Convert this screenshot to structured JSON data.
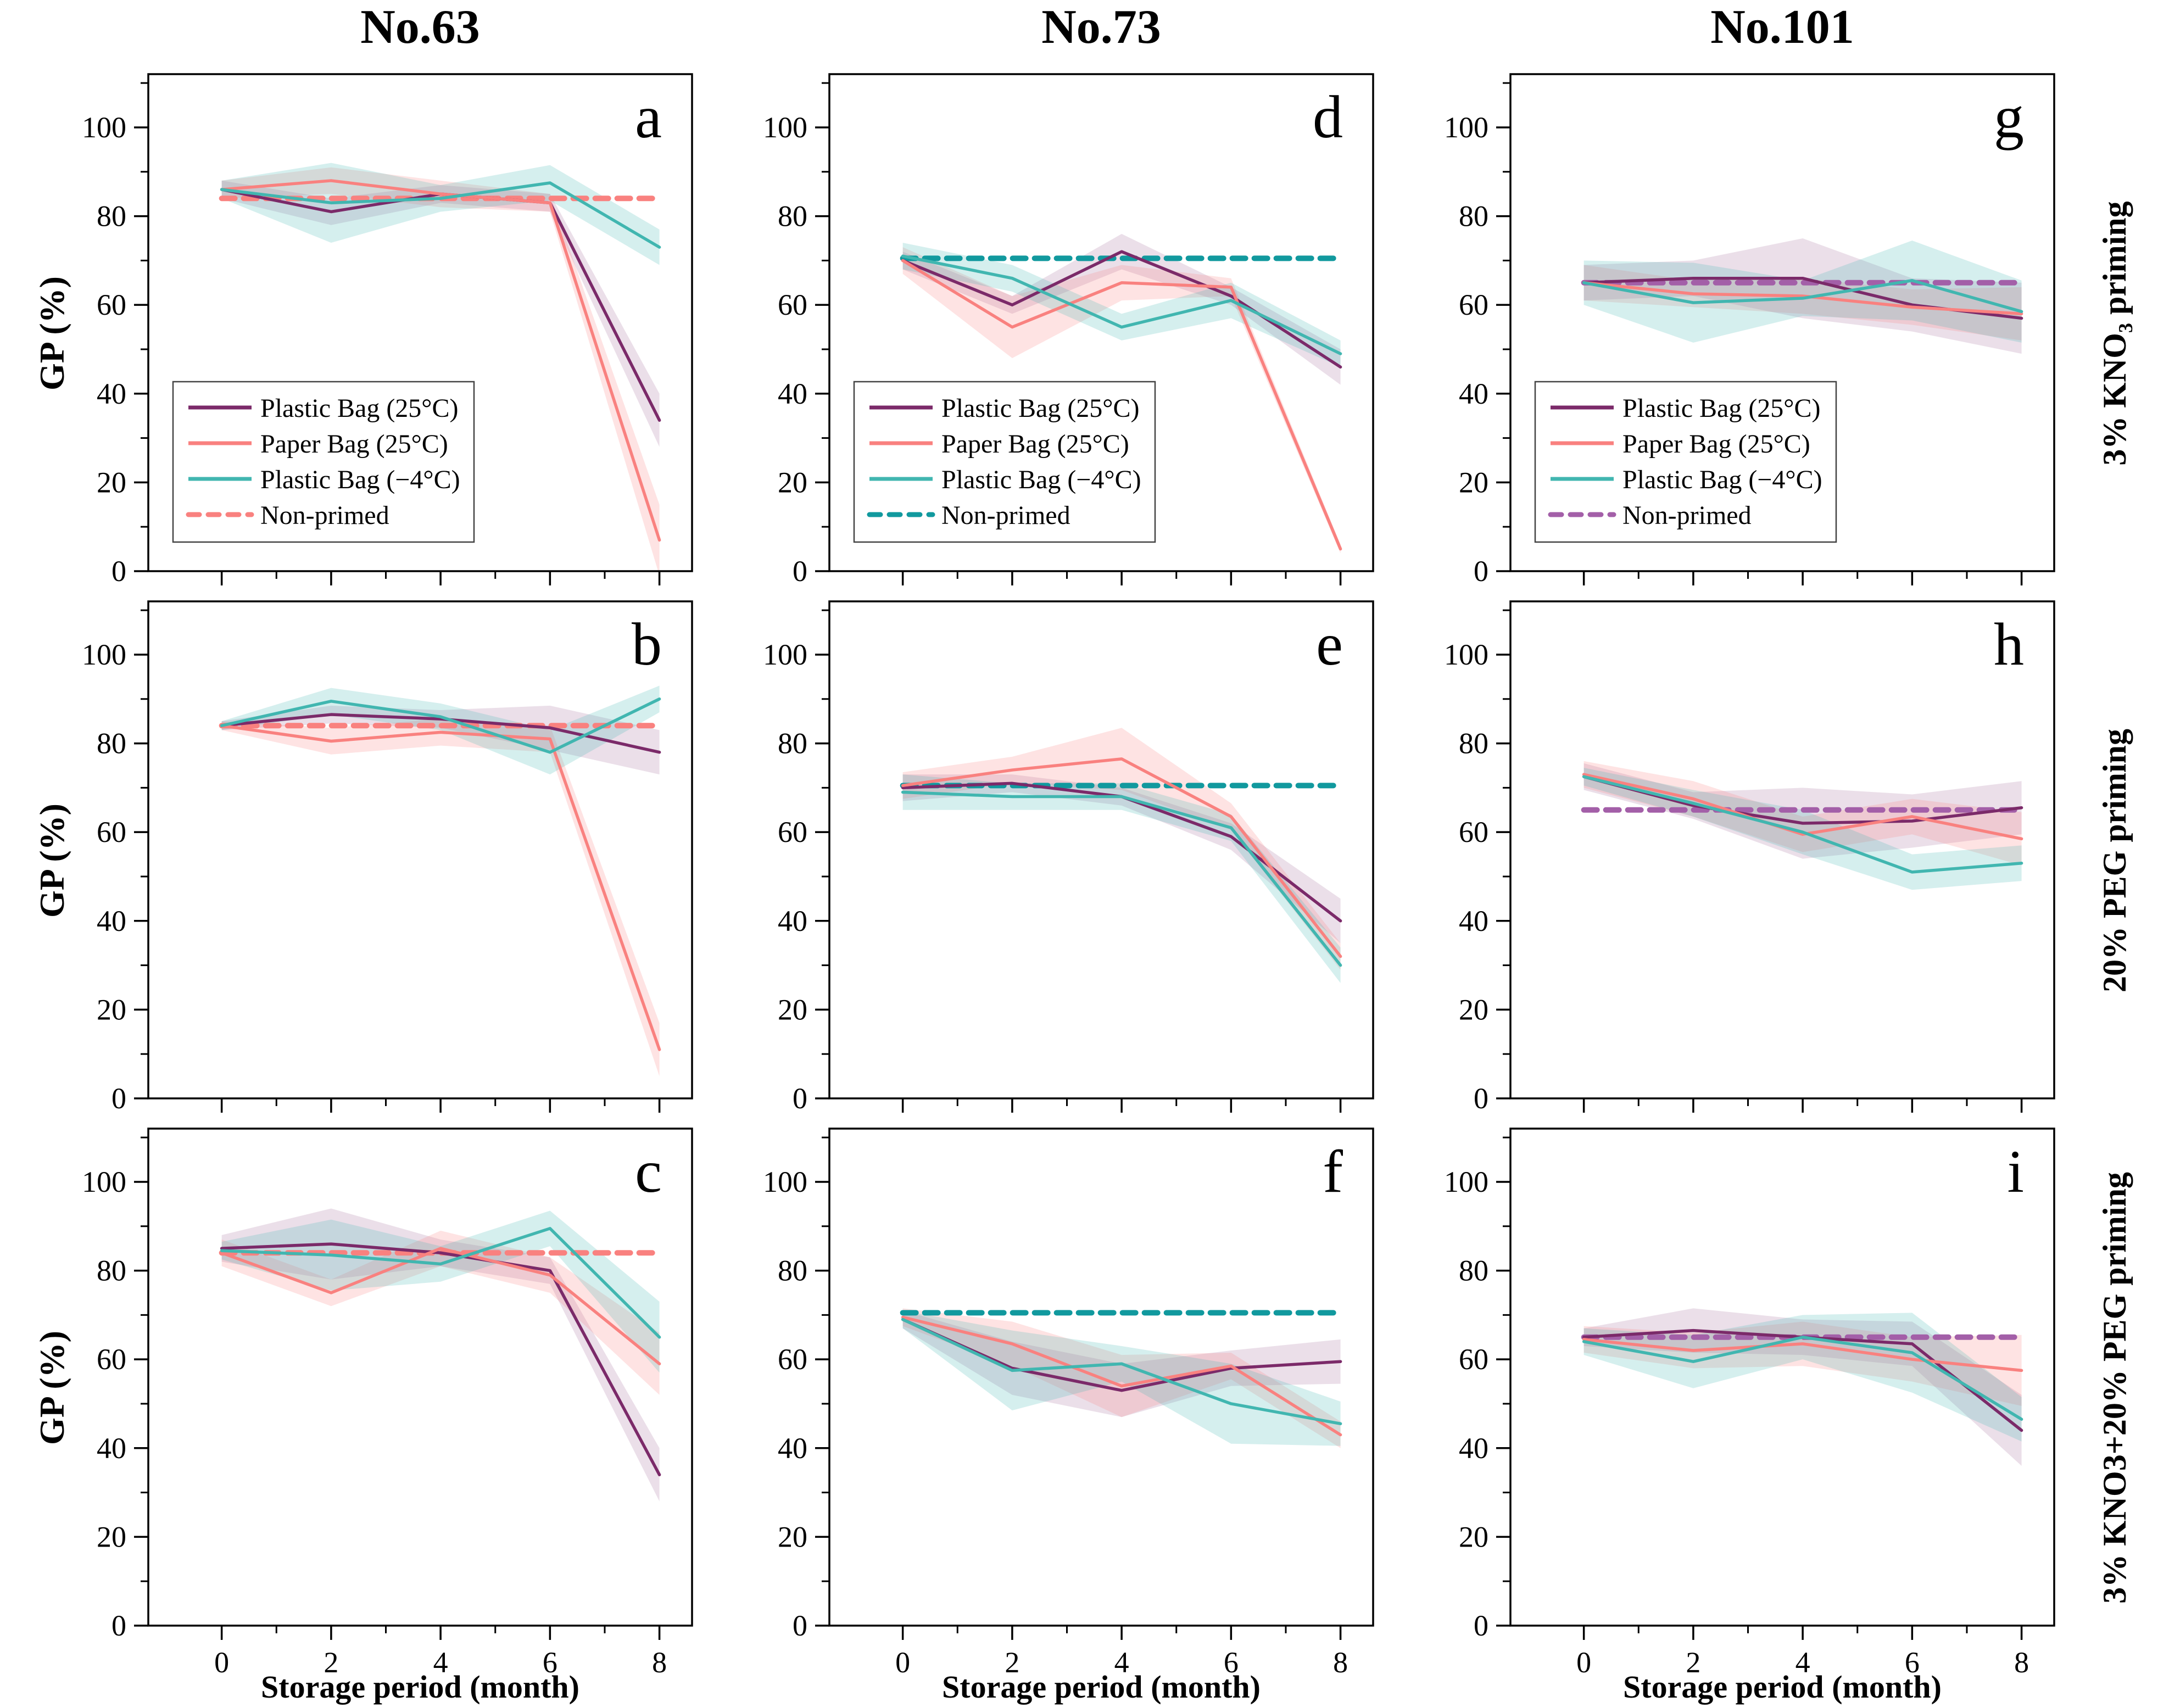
{
  "figure": {
    "column_titles": [
      "No.63",
      "No.73",
      "No.101"
    ],
    "row_labels": [
      "3% KNO₃ priming",
      "20% PEG priming",
      "3% KNO3+20% PEG priming"
    ],
    "y_axis_label": "GP (%)",
    "x_axis_label": "Storage period (month)",
    "panel_letters": [
      "a",
      "b",
      "c",
      "d",
      "e",
      "f",
      "g",
      "h",
      "i"
    ]
  },
  "legend": {
    "labels": [
      "Plastic Bag (25°C)",
      "Paper Bag (25°C)",
      "Plastic Bag (−4°C)",
      "Non-primed"
    ]
  },
  "colors": {
    "plastic_bag_25c": "#7B2A69",
    "paper_bag_25c": "#F9817F",
    "plastic_bag_minus4c": "#41B6B0",
    "non_primed_by_column": [
      "#F9817F",
      "#11999E",
      "#A35FA8"
    ],
    "axis": "#000000"
  },
  "axes": {
    "x_ticks": [
      0,
      2,
      4,
      6,
      8
    ],
    "x_minor_ticks": [
      1,
      3,
      5,
      7
    ],
    "y_ticks": [
      0,
      20,
      40,
      60,
      80,
      100
    ],
    "y_minor_ticks": [
      10,
      30,
      50,
      70,
      90,
      110
    ],
    "x_range": [
      0,
      8
    ],
    "y_range": [
      0,
      112
    ]
  },
  "chart_data": [
    {
      "panel": "a",
      "row": 0,
      "col": 0,
      "cultivar": "No.63",
      "priming": "3% KNO₃ priming",
      "type": "line",
      "show_legend": true,
      "x": [
        0,
        2,
        4,
        6,
        8
      ],
      "series": [
        {
          "name": "Plastic Bag (25°C)",
          "values": [
            86,
            81,
            85,
            83,
            34
          ],
          "band": [
            2,
            3,
            2,
            2,
            6
          ]
        },
        {
          "name": "Paper Bag (25°C)",
          "values": [
            86,
            88,
            85,
            83,
            7
          ],
          "band": [
            2,
            3,
            3,
            2,
            8
          ]
        },
        {
          "name": "Plastic Bag (−4°C)",
          "values": [
            86,
            83,
            84,
            87.5,
            73
          ],
          "band": [
            2,
            9,
            3,
            4,
            4
          ]
        }
      ],
      "non_primed": 84
    },
    {
      "panel": "b",
      "row": 1,
      "col": 0,
      "cultivar": "No.63",
      "priming": "20% PEG priming",
      "type": "line",
      "show_legend": false,
      "x": [
        0,
        2,
        4,
        6,
        8
      ],
      "series": [
        {
          "name": "Plastic Bag (25°C)",
          "values": [
            84,
            86.5,
            85.5,
            83.5,
            78
          ],
          "band": [
            1,
            2,
            2,
            5,
            5
          ]
        },
        {
          "name": "Paper Bag (25°C)",
          "values": [
            84,
            80.5,
            82.5,
            81,
            11
          ],
          "band": [
            1,
            3,
            3,
            3,
            6
          ]
        },
        {
          "name": "Plastic Bag (−4°C)",
          "values": [
            84,
            89.5,
            86,
            78,
            90
          ],
          "band": [
            1,
            3,
            3,
            5,
            3
          ]
        }
      ],
      "non_primed": 84
    },
    {
      "panel": "c",
      "row": 2,
      "col": 0,
      "cultivar": "No.63",
      "priming": "3% KNO3+20% PEG priming",
      "type": "line",
      "show_legend": false,
      "x": [
        0,
        2,
        4,
        6,
        8
      ],
      "series": [
        {
          "name": "Plastic Bag (25°C)",
          "values": [
            85,
            86,
            84,
            80,
            34
          ],
          "band": [
            3,
            8,
            3,
            3,
            6
          ]
        },
        {
          "name": "Paper Bag (25°C)",
          "values": [
            84,
            75,
            85,
            79,
            59
          ],
          "band": [
            3,
            3,
            4,
            4,
            7
          ]
        },
        {
          "name": "Plastic Bag (−4°C)",
          "values": [
            84.5,
            83.5,
            81.5,
            89.5,
            65
          ],
          "band": [
            2,
            8,
            4,
            4,
            8
          ]
        }
      ],
      "non_primed": 84
    },
    {
      "panel": "d",
      "row": 0,
      "col": 1,
      "cultivar": "No.73",
      "priming": "3% KNO₃ priming",
      "type": "line",
      "show_legend": true,
      "x": [
        0,
        2,
        4,
        6,
        8
      ],
      "series": [
        {
          "name": "Plastic Bag (25°C)",
          "values": [
            70,
            60,
            72,
            62,
            46
          ],
          "band": [
            2,
            2,
            4,
            2,
            4
          ]
        },
        {
          "name": "Paper Bag (25°C)",
          "values": [
            70,
            55,
            65,
            64,
            5
          ],
          "band": [
            3,
            7,
            4,
            2,
            1
          ]
        },
        {
          "name": "Plastic Bag (−4°C)",
          "values": [
            71,
            66,
            55,
            61,
            49
          ],
          "band": [
            3,
            3,
            3,
            4,
            3
          ]
        }
      ],
      "non_primed": 70.5
    },
    {
      "panel": "e",
      "row": 1,
      "col": 1,
      "cultivar": "No.73",
      "priming": "20% PEG priming",
      "type": "line",
      "show_legend": false,
      "x": [
        0,
        2,
        4,
        6,
        8
      ],
      "series": [
        {
          "name": "Plastic Bag (25°C)",
          "values": [
            70,
            71,
            68,
            59,
            40
          ],
          "band": [
            3,
            2,
            2,
            3,
            5
          ]
        },
        {
          "name": "Paper Bag (25°C)",
          "values": [
            70.5,
            74,
            76.5,
            63.5,
            32
          ],
          "band": [
            3,
            3,
            7,
            3,
            3
          ]
        },
        {
          "name": "Plastic Bag (−4°C)",
          "values": [
            69,
            68,
            68,
            61,
            30
          ],
          "band": [
            4,
            3,
            3,
            3,
            4
          ]
        }
      ],
      "non_primed": 70.5
    },
    {
      "panel": "f",
      "row": 2,
      "col": 1,
      "cultivar": "No.73",
      "priming": "3% KNO3+20% PEG priming",
      "type": "line",
      "show_legend": false,
      "x": [
        0,
        2,
        4,
        6,
        8
      ],
      "series": [
        {
          "name": "Plastic Bag (25°C)",
          "values": [
            69,
            58,
            53,
            58,
            59.5
          ],
          "band": [
            2,
            6,
            6,
            4,
            5
          ]
        },
        {
          "name": "Paper Bag (25°C)",
          "values": [
            69.5,
            63.5,
            54,
            58.5,
            43
          ],
          "band": [
            2,
            5,
            7,
            3,
            3
          ]
        },
        {
          "name": "Plastic Bag (−4°C)",
          "values": [
            69,
            57.5,
            59,
            50,
            45.5
          ],
          "band": [
            2,
            9,
            4,
            9,
            5
          ]
        }
      ],
      "non_primed": 70.5
    },
    {
      "panel": "g",
      "row": 0,
      "col": 2,
      "cultivar": "No.101",
      "priming": "3% KNO₃ priming",
      "type": "line",
      "show_legend": true,
      "x": [
        0,
        2,
        4,
        6,
        8
      ],
      "series": [
        {
          "name": "Plastic Bag (25°C)",
          "values": [
            65,
            66,
            66,
            60,
            57
          ],
          "band": [
            4,
            4,
            9,
            6,
            8
          ]
        },
        {
          "name": "Paper Bag (25°C)",
          "values": [
            65,
            62.5,
            62,
            59.5,
            58
          ],
          "band": [
            4,
            3,
            4,
            4,
            6
          ]
        },
        {
          "name": "Plastic Bag (−4°C)",
          "values": [
            65,
            60.5,
            61.5,
            65.5,
            58.5
          ],
          "band": [
            5,
            9,
            4,
            9,
            7
          ]
        }
      ],
      "non_primed": 65
    },
    {
      "panel": "h",
      "row": 1,
      "col": 2,
      "cultivar": "No.101",
      "priming": "20% PEG priming",
      "type": "line",
      "show_legend": false,
      "x": [
        0,
        2,
        4,
        6,
        8
      ],
      "series": [
        {
          "name": "Plastic Bag (25°C)",
          "values": [
            72.5,
            66,
            62,
            62.5,
            65.5
          ],
          "band": [
            3,
            3,
            8,
            6,
            6
          ]
        },
        {
          "name": "Paper Bag (25°C)",
          "values": [
            73,
            67.5,
            59.5,
            63.5,
            58.5
          ],
          "band": [
            3,
            4,
            4,
            4,
            6
          ]
        },
        {
          "name": "Plastic Bag (−4°C)",
          "values": [
            72.5,
            66.5,
            60,
            51,
            53
          ],
          "band": [
            2,
            3,
            5,
            4,
            4
          ]
        }
      ],
      "non_primed": 65
    },
    {
      "panel": "i",
      "row": 2,
      "col": 2,
      "cultivar": "No.101",
      "priming": "3% KNO3+20% PEG priming",
      "type": "line",
      "show_legend": false,
      "x": [
        0,
        2,
        4,
        6,
        8
      ],
      "series": [
        {
          "name": "Plastic Bag (25°C)",
          "values": [
            65,
            66.5,
            65,
            63.5,
            44
          ],
          "band": [
            2,
            5,
            4,
            5,
            8
          ]
        },
        {
          "name": "Paper Bag (25°C)",
          "values": [
            64.5,
            62,
            63.5,
            60,
            57.5
          ],
          "band": [
            3,
            4,
            5,
            5,
            8
          ]
        },
        {
          "name": "Plastic Bag (−4°C)",
          "values": [
            64,
            59.5,
            65,
            61.5,
            46.5
          ],
          "band": [
            3,
            6,
            5,
            9,
            5
          ]
        }
      ],
      "non_primed": 65
    }
  ]
}
